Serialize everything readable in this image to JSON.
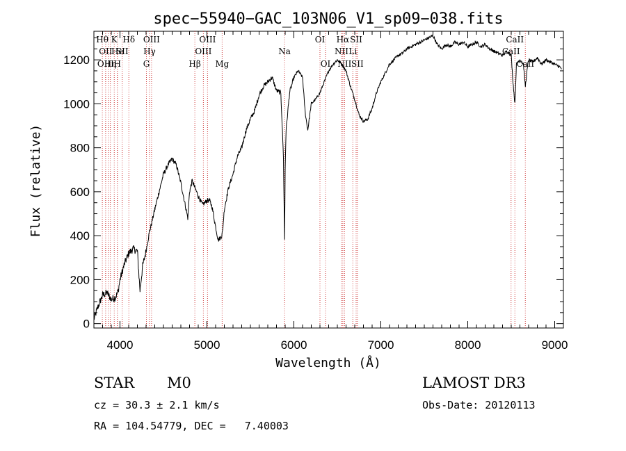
{
  "chart_data": {
    "type": "line",
    "title": "spec−55940−GAC_103N06_V1_sp09−038.fits",
    "xlabel": "Wavelength (Å)",
    "ylabel": "Flux (relative)",
    "xlim": [
      3700,
      9100
    ],
    "ylim": [
      -20,
      1330
    ],
    "xticks": [
      4000,
      5000,
      6000,
      7000,
      8000,
      9000
    ],
    "yticks": [
      0,
      200,
      400,
      600,
      800,
      1000,
      1200
    ],
    "series": [
      {
        "name": "spectrum",
        "x": [
          3700,
          3750,
          3800,
          3850,
          3900,
          3950,
          3980,
          4000,
          4050,
          4100,
          4150,
          4200,
          4230,
          4260,
          4300,
          4340,
          4360,
          4400,
          4450,
          4500,
          4550,
          4600,
          4650,
          4700,
          4740,
          4780,
          4800,
          4830,
          4860,
          4900,
          4950,
          5000,
          5030,
          5060,
          5100,
          5130,
          5170,
          5180,
          5200,
          5250,
          5300,
          5350,
          5400,
          5450,
          5500,
          5550,
          5600,
          5650,
          5700,
          5750,
          5800,
          5850,
          5880,
          5893,
          5900,
          5910,
          5950,
          6000,
          6050,
          6100,
          6130,
          6160,
          6200,
          6250,
          6300,
          6350,
          6400,
          6450,
          6500,
          6550,
          6600,
          6650,
          6700,
          6750,
          6800,
          6850,
          6900,
          6950,
          7000,
          7050,
          7100,
          7150,
          7200,
          7250,
          7300,
          7350,
          7400,
          7450,
          7500,
          7550,
          7600,
          7650,
          7700,
          7750,
          7800,
          7850,
          7900,
          7950,
          8000,
          8050,
          8100,
          8150,
          8200,
          8250,
          8300,
          8350,
          8400,
          8450,
          8500,
          8520,
          8542,
          8560,
          8600,
          8640,
          8662,
          8690,
          8700,
          8750,
          8800,
          8850,
          8900,
          8950,
          9000,
          9050,
          9080
        ],
        "values": [
          20,
          80,
          130,
          140,
          110,
          120,
          150,
          200,
          270,
          320,
          340,
          330,
          150,
          260,
          330,
          420,
          450,
          520,
          600,
          680,
          720,
          750,
          720,
          640,
          560,
          480,
          600,
          650,
          620,
          580,
          540,
          560,
          560,
          530,
          440,
          380,
          400,
          420,
          520,
          620,
          680,
          760,
          800,
          880,
          930,
          970,
          1040,
          1080,
          1100,
          1120,
          1060,
          1050,
          760,
          380,
          700,
          880,
          1050,
          1120,
          1150,
          1120,
          960,
          880,
          1000,
          1020,
          1050,
          1100,
          1150,
          1180,
          1200,
          1180,
          1150,
          1080,
          1020,
          950,
          920,
          930,
          980,
          1050,
          1100,
          1140,
          1180,
          1200,
          1220,
          1230,
          1250,
          1260,
          1270,
          1280,
          1290,
          1300,
          1310,
          1270,
          1250,
          1270,
          1260,
          1280,
          1270,
          1280,
          1260,
          1270,
          1280,
          1260,
          1270,
          1250,
          1240,
          1230,
          1220,
          1240,
          1220,
          1100,
          1000,
          1180,
          1200,
          1180,
          1080,
          1180,
          1200,
          1190,
          1210,
          1180,
          1200,
          1190,
          1180,
          1170,
          1160
        ]
      }
    ],
    "lines": [
      {
        "wl": 3797,
        "label": "Hθ",
        "row": 0
      },
      {
        "wl": 3835,
        "label": "OII",
        "row": 1
      },
      {
        "wl": 3835,
        "label": "OIII",
        "row": 2
      },
      {
        "wl": 3869,
        "label": "",
        "row": 2
      },
      {
        "wl": 3889,
        "label": "Hη",
        "row": 2
      },
      {
        "wl": 3934,
        "label": "K",
        "row": 0
      },
      {
        "wl": 3970,
        "label": "H",
        "row": 2
      },
      {
        "wl": 3970,
        "label": "He",
        "row": 1
      },
      {
        "wl": 4026,
        "label": "SII",
        "row": 1
      },
      {
        "wl": 4102,
        "label": "Hδ",
        "row": 0
      },
      {
        "wl": 4304,
        "label": "G",
        "row": 2
      },
      {
        "wl": 4340,
        "label": "Hγ",
        "row": 1
      },
      {
        "wl": 4363,
        "label": "OIII",
        "row": 0
      },
      {
        "wl": 4861,
        "label": "Hβ",
        "row": 2
      },
      {
        "wl": 4959,
        "label": "OIII",
        "row": 1
      },
      {
        "wl": 5007,
        "label": "OIII",
        "row": 0
      },
      {
        "wl": 5175,
        "label": "Mg",
        "row": 2
      },
      {
        "wl": 5893,
        "label": "Na",
        "row": 1
      },
      {
        "wl": 6300,
        "label": "OI",
        "row": 0
      },
      {
        "wl": 6364,
        "label": "OI",
        "row": 2
      },
      {
        "wl": 6548,
        "label": "NII",
        "row": 1
      },
      {
        "wl": 6563,
        "label": "Hα",
        "row": 0
      },
      {
        "wl": 6583,
        "label": "NII",
        "row": 2
      },
      {
        "wl": 6678,
        "label": "Li",
        "row": 1
      },
      {
        "wl": 6716,
        "label": "SII",
        "row": 0
      },
      {
        "wl": 6731,
        "label": "SII",
        "row": 2
      },
      {
        "wl": 8498,
        "label": "CaII",
        "row": 1
      },
      {
        "wl": 8542,
        "label": "CaII",
        "row": 0
      },
      {
        "wl": 8662,
        "label": "CaII",
        "row": 2
      }
    ]
  },
  "info": {
    "class_label": "STAR",
    "subclass": "M0",
    "survey": "LAMOST DR3",
    "cz_line": "cz = 30.3 ± 2.1 km/s",
    "obs_date": "Obs-Date: 20120113",
    "coords": "RA = 104.54779, DEC =   7.40003"
  },
  "colors": {
    "line_marker": "#d04040",
    "spectrum": "#000000"
  }
}
